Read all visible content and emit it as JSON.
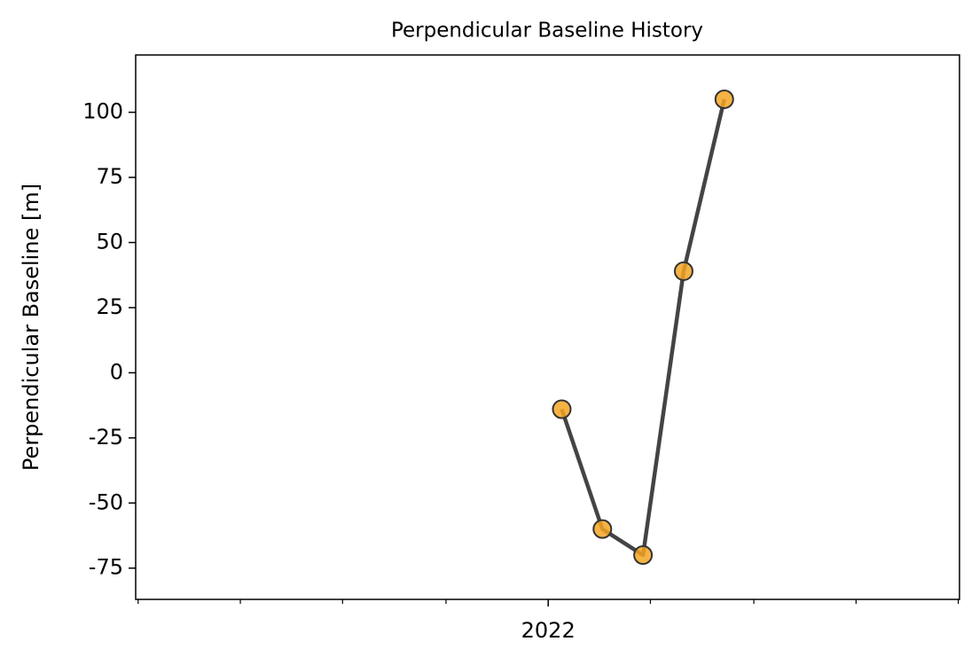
{
  "chart_data": {
    "type": "line",
    "title": "Perpendicular Baseline History",
    "y_label": "Perpendicular Baseline [m]",
    "x": [
      2022.011,
      2022.044,
      2022.077,
      2022.11,
      2022.143
    ],
    "series": [
      {
        "name": "Perpendicular Baseline",
        "line_color": "#444444",
        "marker_color": "#f5a623",
        "values": [
          -14,
          -60,
          -70,
          39,
          105
        ]
      }
    ],
    "xlim": [
      2021.665,
      2022.334
    ],
    "xticks": [
      {
        "value": 2022,
        "label": "2022"
      }
    ],
    "xminor_ticks": [
      2021.667,
      2021.75,
      2021.833,
      2021.917,
      2022.083,
      2022.167,
      2022.25,
      2022.333
    ],
    "ylim": [
      -87,
      122
    ],
    "yticks": [
      -75,
      -50,
      -25,
      0,
      25,
      50,
      75,
      100
    ],
    "grid": false
  }
}
